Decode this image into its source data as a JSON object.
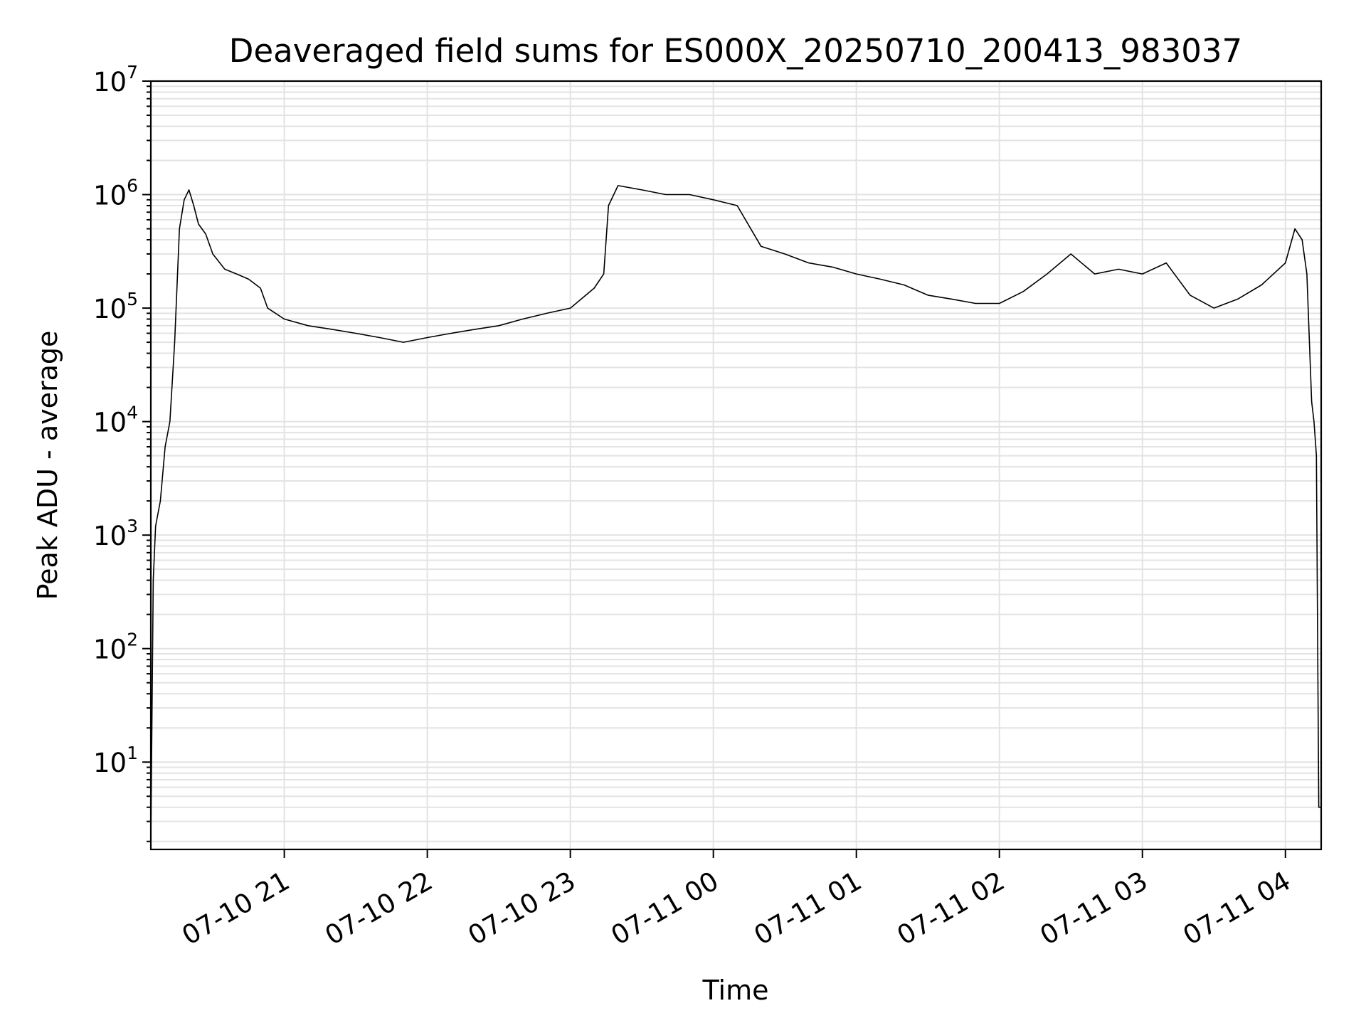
{
  "chart_data": {
    "type": "line",
    "title": "Deaveraged field sums for ES000X_20250710_200413_983037",
    "xlabel": "Time",
    "ylabel": "Peak ADU - average",
    "yscale": "log",
    "ylim": [
      1.7,
      10000000
    ],
    "xlim": [
      "07-10 20:04",
      "07-11 04:15"
    ],
    "grid": true,
    "x_ticks": [
      "07-10 21",
      "07-10 22",
      "07-10 23",
      "07-11 00",
      "07-11 01",
      "07-11 02",
      "07-11 03",
      "07-11 04"
    ],
    "y_ticks": [
      {
        "base": "10",
        "exp": "1",
        "value": 10
      },
      {
        "base": "10",
        "exp": "2",
        "value": 100
      },
      {
        "base": "10",
        "exp": "3",
        "value": 1000
      },
      {
        "base": "10",
        "exp": "4",
        "value": 10000
      },
      {
        "base": "10",
        "exp": "5",
        "value": 100000
      },
      {
        "base": "10",
        "exp": "6",
        "value": 1000000
      },
      {
        "base": "10",
        "exp": "7",
        "value": 10000000
      }
    ],
    "series": [
      {
        "color": "#000000",
        "x": [
          "07-10 20:04",
          "07-10 20:05",
          "07-10 20:06",
          "07-10 20:08",
          "07-10 20:10",
          "07-10 20:12",
          "07-10 20:14",
          "07-10 20:16",
          "07-10 20:18",
          "07-10 20:20",
          "07-10 20:22",
          "07-10 20:24",
          "07-10 20:27",
          "07-10 20:30",
          "07-10 20:35",
          "07-10 20:40",
          "07-10 20:45",
          "07-10 20:50",
          "07-10 20:53",
          "07-10 21:00",
          "07-10 21:10",
          "07-10 21:20",
          "07-10 21:30",
          "07-10 21:40",
          "07-10 21:50",
          "07-10 22:00",
          "07-10 22:10",
          "07-10 22:20",
          "07-10 22:30",
          "07-10 22:40",
          "07-10 22:50",
          "07-10 23:00",
          "07-10 23:10",
          "07-10 23:14",
          "07-10 23:16",
          "07-10 23:20",
          "07-10 23:30",
          "07-10 23:40",
          "07-10 23:50",
          "07-11 00:00",
          "07-11 00:10",
          "07-11 00:20",
          "07-11 00:30",
          "07-11 00:40",
          "07-11 00:50",
          "07-11 01:00",
          "07-11 01:10",
          "07-11 01:20",
          "07-11 01:30",
          "07-11 01:40",
          "07-11 01:50",
          "07-11 02:00",
          "07-11 02:10",
          "07-11 02:20",
          "07-11 02:30",
          "07-11 02:40",
          "07-11 02:50",
          "07-11 03:00",
          "07-11 03:10",
          "07-11 03:20",
          "07-11 03:30",
          "07-11 03:40",
          "07-11 03:50",
          "07-11 04:00",
          "07-11 04:04",
          "07-11 04:07",
          "07-11 04:09",
          "07-11 04:11",
          "07-11 04:12",
          "07-11 04:13",
          "07-11 04:14",
          "07-11 04:15"
        ],
        "y": [
          2,
          400,
          1200,
          2000,
          6000,
          10000,
          50000,
          500000,
          900000,
          1100000,
          800000,
          550000,
          450000,
          300000,
          220000,
          200000,
          180000,
          150000,
          100000,
          80000,
          70000,
          65000,
          60000,
          55000,
          50000,
          55000,
          60000,
          65000,
          70000,
          80000,
          90000,
          100000,
          150000,
          200000,
          800000,
          1200000,
          1100000,
          1000000,
          1000000,
          900000,
          800000,
          350000,
          300000,
          250000,
          230000,
          200000,
          180000,
          160000,
          130000,
          120000,
          110000,
          110000,
          140000,
          200000,
          300000,
          200000,
          220000,
          200000,
          250000,
          130000,
          100000,
          120000,
          160000,
          250000,
          500000,
          400000,
          200000,
          15000,
          10000,
          5000,
          4,
          4
        ]
      }
    ]
  }
}
